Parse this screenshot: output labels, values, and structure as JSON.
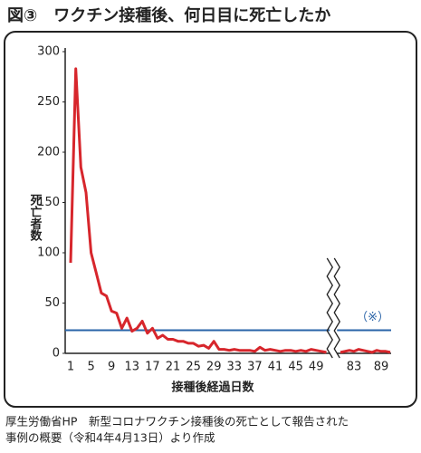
{
  "chart_data": {
    "type": "line",
    "title": "図③　ワクチン接種後、何日目に死亡したか",
    "y_label": "死亡者数",
    "x_label": "接種後経過日数",
    "source": [
      "厚生労働省HP　新型コロナワクチン接種後の死亡として報告された",
      "事例の概要（令和4年4月13日）より作成"
    ],
    "categories": [
      "1",
      null,
      null,
      null,
      "5",
      null,
      null,
      null,
      "9",
      null,
      null,
      null,
      "13",
      null,
      null,
      null,
      "17",
      null,
      null,
      null,
      "21",
      null,
      null,
      null,
      "25",
      null,
      null,
      null,
      "29",
      null,
      null,
      null,
      "33",
      null,
      null,
      null,
      "37",
      null,
      null,
      null,
      "41",
      null,
      null,
      null,
      "45",
      null,
      null,
      null,
      "49",
      null,
      null,
      null,
      null,
      null,
      null,
      "83",
      null,
      null,
      null,
      null,
      null,
      "89",
      null,
      null
    ],
    "series": [
      {
        "name": "死亡者数",
        "color": "#d7262c",
        "values": [
          90,
          283,
          185,
          160,
          100,
          80,
          60,
          57,
          42,
          40,
          25,
          35,
          22,
          25,
          32,
          20,
          25,
          15,
          18,
          14,
          14,
          12,
          12,
          10,
          10,
          7,
          8,
          5,
          12,
          4,
          4,
          3,
          4,
          3,
          3,
          3,
          2,
          6,
          3,
          4,
          3,
          2,
          3,
          3,
          2,
          3,
          2,
          4,
          3,
          2,
          1,
          null,
          1,
          2,
          3,
          2,
          4,
          3,
          2,
          1,
          3,
          2,
          2,
          1
        ]
      }
    ],
    "reference_line": {
      "value": 23,
      "label": "（※）",
      "color": "#2a64a8"
    },
    "ylim": [
      0,
      300
    ],
    "yticks": [
      0,
      50,
      100,
      150,
      200,
      250,
      300
    ]
  }
}
